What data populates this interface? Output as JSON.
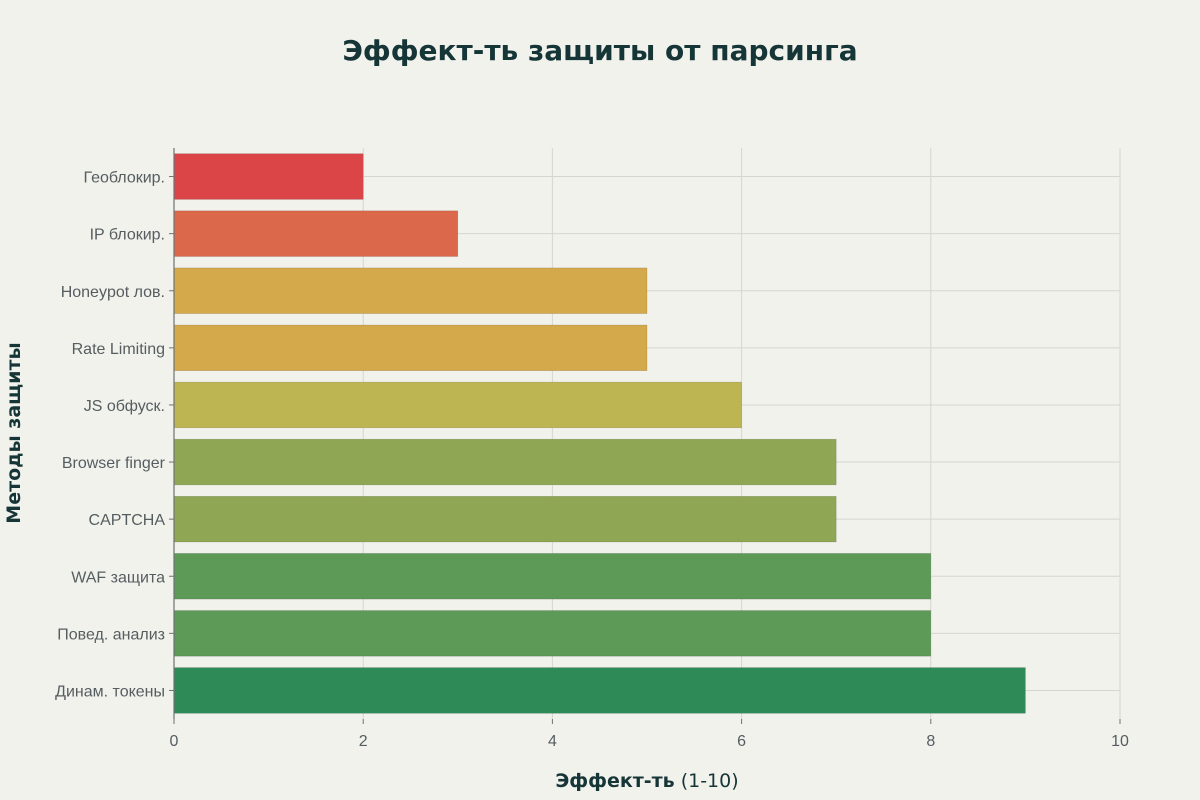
{
  "chart_data": {
    "type": "bar",
    "orientation": "horizontal",
    "title": "Эффект-ть защиты от парсинга",
    "xlabel": "Эффект-ть",
    "xlabel_unit": "(1-10)",
    "ylabel": "Методы защиты",
    "xlim": [
      0,
      10
    ],
    "xticks": [
      "0",
      "2",
      "4",
      "6",
      "8",
      "10"
    ],
    "grid": true,
    "categories": [
      "Геоблокир.",
      "IP блокир.",
      "Honeypot лов.",
      "Rate Limiting",
      "JS обфуск.",
      "Browser finger",
      "CAPTCHA",
      "WAF защита",
      "Повед. анализ",
      "Динам. токены"
    ],
    "values": [
      2,
      3,
      5,
      5,
      6,
      7,
      7,
      8,
      8,
      9
    ],
    "colors": [
      "#db4548",
      "#db684a",
      "#d4a94c",
      "#d4a94c",
      "#bdb552",
      "#8fa754",
      "#8fa754",
      "#5d9a57",
      "#5d9a57",
      "#2e8a57"
    ]
  }
}
